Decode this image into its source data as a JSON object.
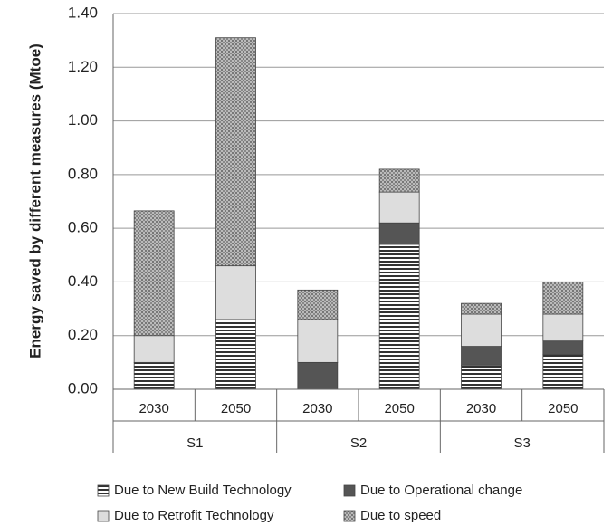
{
  "chart_data": {
    "type": "stacked-bar",
    "y_axis_label": "Energy saved by different measures (Mtoe)",
    "categories": [
      "2030",
      "2050",
      "2030",
      "2050",
      "2030",
      "2050"
    ],
    "groups": [
      "S1",
      "S2",
      "S3"
    ],
    "series": [
      {
        "name": "Due to New Build Technology",
        "color": "#333333",
        "pattern": "stripes",
        "values": [
          0.1,
          0.26,
          0,
          0.54,
          0.09,
          0.13
        ]
      },
      {
        "name": "Due to Operational change",
        "color": "#555555",
        "pattern": "solid",
        "values": [
          0,
          0,
          0.1,
          0.08,
          0.07,
          0.05
        ]
      },
      {
        "name": "Due to Retrofit Technology",
        "color": "#dddddd",
        "pattern": "solid",
        "values": [
          0.1,
          0.2,
          0.16,
          0.115,
          0.12,
          0.1
        ]
      },
      {
        "name": "Due to speed",
        "color": "#aaaaaa",
        "pattern": "dots",
        "values": [
          0.465,
          0.85,
          0.11,
          0.085,
          0.04,
          0.12
        ]
      }
    ],
    "ylim": [
      0,
      1.4
    ],
    "yticks": [
      {
        "value": 0,
        "label": "0.00"
      },
      {
        "value": 0.2,
        "label": "0.20"
      },
      {
        "value": 0.4,
        "label": "0.40"
      },
      {
        "value": 0.6,
        "label": "0.60"
      },
      {
        "value": 0.8,
        "label": "0.80"
      },
      {
        "value": 1.0,
        "label": "1.00"
      },
      {
        "value": 1.2,
        "label": "1.20"
      },
      {
        "value": 1.4,
        "label": "1.40"
      }
    ],
    "grid": true
  }
}
